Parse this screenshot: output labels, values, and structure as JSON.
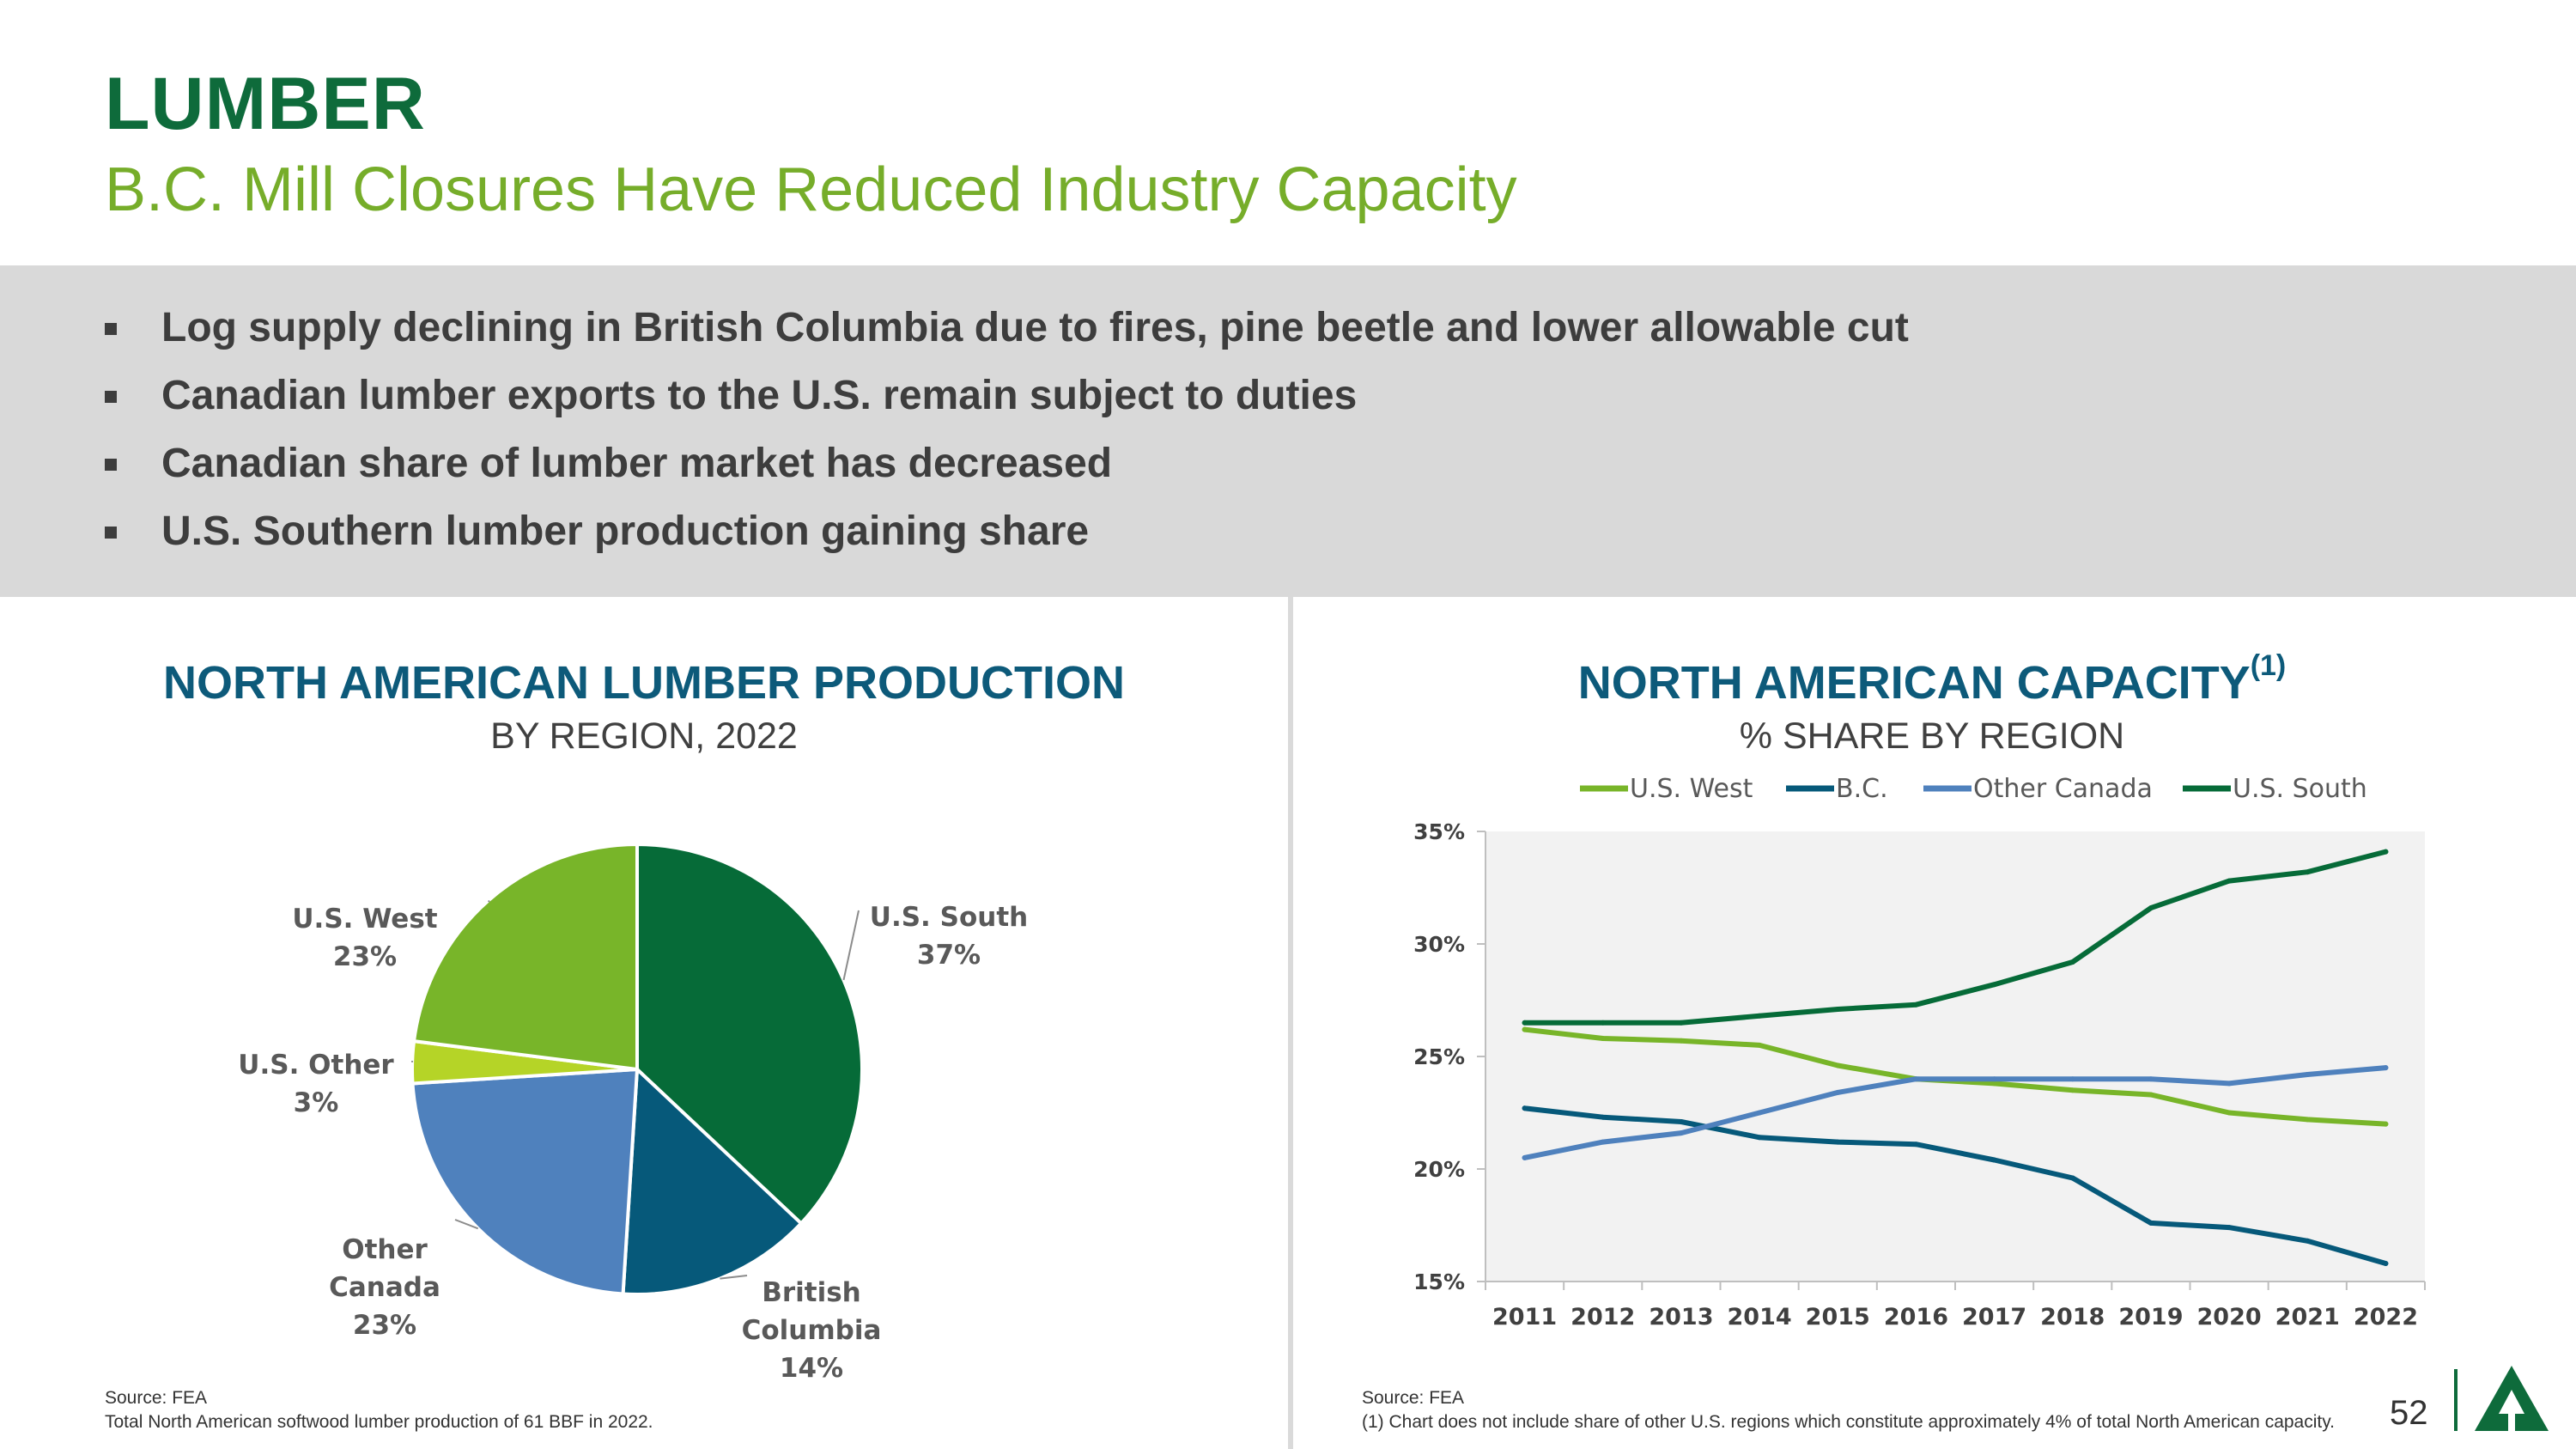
{
  "header": {
    "title": "LUMBER",
    "subtitle": "B.C. Mill Closures Have Reduced Industry Capacity"
  },
  "bullets": [
    "Log supply declining in British Columbia due to fires, pine beetle and lower allowable cut",
    "Canadian lumber exports to the U.S. remain subject to duties",
    "Canadian share of lumber market has decreased",
    "U.S. Southern lumber production gaining share"
  ],
  "pie_panel": {
    "title": "NORTH AMERICAN LUMBER PRODUCTION",
    "subtitle": "BY REGION, 2022",
    "source": "Source: FEA",
    "note": "Total North American softwood lumber production of 61 BBF in 2022."
  },
  "line_panel": {
    "title": "NORTH AMERICAN CAPACITY",
    "title_sup": "(1)",
    "subtitle": "% SHARE BY REGION",
    "source": "Source: FEA",
    "note": "(1) Chart does not include share of other U.S. regions which constitute approximately 4% of total North American capacity."
  },
  "page_number": "52",
  "chart_data": [
    {
      "type": "pie",
      "title": "NORTH AMERICAN LUMBER PRODUCTION",
      "subtitle": "BY REGION, 2022",
      "slices": [
        {
          "name": "U.S. South",
          "label": [
            "U.S. South"
          ],
          "value": 37,
          "value_label": "37%",
          "color": "#066b38"
        },
        {
          "name": "British Columbia",
          "label": [
            "British",
            "Columbia"
          ],
          "value": 14,
          "value_label": "14%",
          "color": "#06597a"
        },
        {
          "name": "Other Canada",
          "label": [
            "Other",
            "Canada"
          ],
          "value": 23,
          "value_label": "23%",
          "color": "#4f81bd"
        },
        {
          "name": "U.S. Other",
          "label": [
            "U.S. Other"
          ],
          "value": 3,
          "value_label": "3%",
          "color": "#b5d427"
        },
        {
          "name": "U.S. West",
          "label": [
            "U.S. West"
          ],
          "value": 23,
          "value_label": "23%",
          "color": "#78b529"
        }
      ]
    },
    {
      "type": "line",
      "title": "NORTH AMERICAN CAPACITY",
      "subtitle": "% SHARE BY REGION",
      "x": [
        "2011",
        "2012",
        "2013",
        "2014",
        "2015",
        "2016",
        "2017",
        "2018",
        "2019",
        "2020",
        "2021",
        "2022"
      ],
      "ylim": [
        15,
        35
      ],
      "yticks": [
        15,
        20,
        25,
        30,
        35
      ],
      "ytick_labels": [
        "15%",
        "20%",
        "25%",
        "30%",
        "35%"
      ],
      "grid": false,
      "legend": "top",
      "series": [
        {
          "name": "U.S. West",
          "color": "#78b529",
          "values": [
            26.2,
            25.8,
            25.7,
            25.5,
            24.6,
            24.0,
            23.8,
            23.5,
            23.3,
            22.5,
            22.2,
            22.0
          ]
        },
        {
          "name": "B.C.",
          "color": "#06597a",
          "values": [
            22.7,
            22.3,
            22.1,
            21.4,
            21.2,
            21.1,
            20.4,
            19.6,
            17.6,
            17.4,
            16.8,
            15.8
          ]
        },
        {
          "name": "Other Canada",
          "color": "#4f81bd",
          "values": [
            20.5,
            21.2,
            21.6,
            22.5,
            23.4,
            24.0,
            24.0,
            24.0,
            24.0,
            23.8,
            24.2,
            24.5
          ]
        },
        {
          "name": "U.S. South",
          "color": "#066b38",
          "values": [
            26.5,
            26.5,
            26.5,
            26.8,
            27.1,
            27.3,
            28.2,
            29.2,
            31.6,
            32.8,
            33.2,
            34.1
          ]
        }
      ]
    }
  ]
}
